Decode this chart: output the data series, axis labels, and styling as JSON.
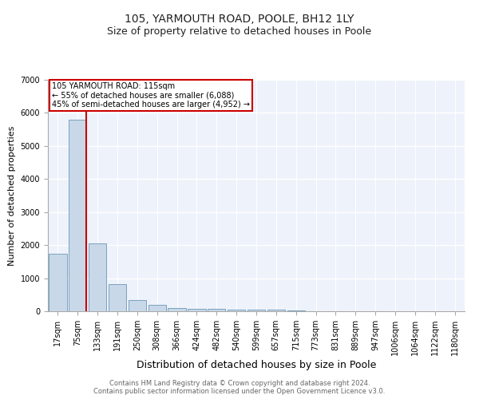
{
  "title": "105, YARMOUTH ROAD, POOLE, BH12 1LY",
  "subtitle": "Size of property relative to detached houses in Poole",
  "xlabel": "Distribution of detached houses by size in Poole",
  "ylabel": "Number of detached properties",
  "categories": [
    "17sqm",
    "75sqm",
    "133sqm",
    "191sqm",
    "250sqm",
    "308sqm",
    "366sqm",
    "424sqm",
    "482sqm",
    "540sqm",
    "599sqm",
    "657sqm",
    "715sqm",
    "773sqm",
    "831sqm",
    "889sqm",
    "947sqm",
    "1006sqm",
    "1064sqm",
    "1122sqm",
    "1180sqm"
  ],
  "values": [
    1750,
    5800,
    2050,
    820,
    340,
    185,
    105,
    75,
    65,
    55,
    45,
    40,
    35,
    0,
    0,
    0,
    0,
    0,
    0,
    0,
    0
  ],
  "bar_color": "#c8d8e8",
  "bar_edge_color": "#5588aa",
  "vline_x": 1.42,
  "vline_color": "#cc0000",
  "annotation_text": "105 YARMOUTH ROAD: 115sqm\n← 55% of detached houses are smaller (6,088)\n45% of semi-detached houses are larger (4,952) →",
  "annotation_box_color": "#cc0000",
  "ylim": [
    0,
    7000
  ],
  "yticks": [
    0,
    1000,
    2000,
    3000,
    4000,
    5000,
    6000,
    7000
  ],
  "background_color": "#eef2fb",
  "grid_color": "#ffffff",
  "footer_line1": "Contains HM Land Registry data © Crown copyright and database right 2024.",
  "footer_line2": "Contains public sector information licensed under the Open Government Licence v3.0.",
  "title_fontsize": 10,
  "subtitle_fontsize": 9,
  "xlabel_fontsize": 9,
  "ylabel_fontsize": 8,
  "tick_fontsize": 7,
  "footer_fontsize": 6
}
